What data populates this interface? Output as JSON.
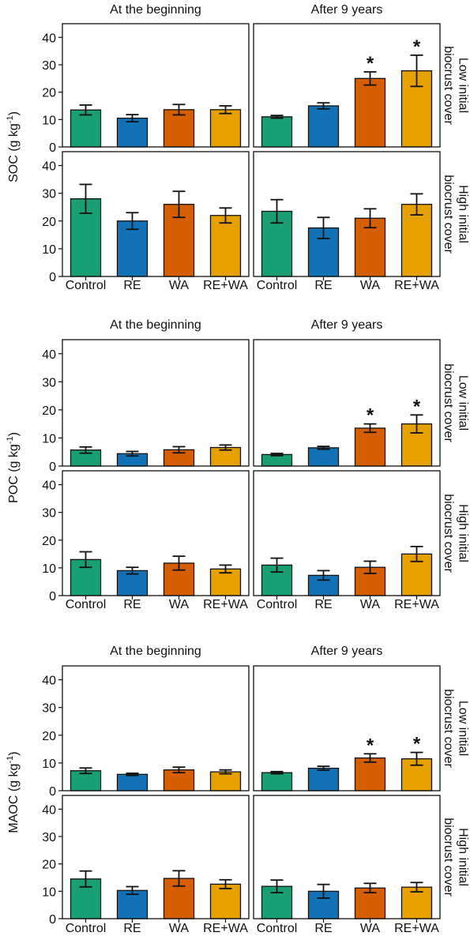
{
  "chart_data": [
    {
      "type": "bar",
      "ylabel": "SOC",
      "yunit": "(g kg",
      "yunit_exp": "-1",
      "ylim": [
        0,
        45
      ],
      "yticks": [
        0,
        10,
        20,
        30,
        40
      ],
      "categories": [
        "Control",
        "RE",
        "WA",
        "RE+WA"
      ],
      "colors": [
        "#1a9e73",
        "#1272b5",
        "#d55e00",
        "#e6a000"
      ],
      "columns": [
        "At the beginning",
        "After 9 years"
      ],
      "rows": [
        "Low initial biocrust cover",
        "High initial biocrust cover"
      ],
      "panels": [
        {
          "row": 0,
          "col": 0,
          "values": [
            13.5,
            10.5,
            13.6,
            13.6
          ],
          "errors": [
            1.8,
            1.3,
            1.9,
            1.4
          ],
          "stars": [
            "",
            "",
            "",
            ""
          ]
        },
        {
          "row": 0,
          "col": 1,
          "values": [
            11.0,
            15.0,
            25.0,
            27.8
          ],
          "errors": [
            0.5,
            1.1,
            2.4,
            5.7
          ],
          "stars": [
            "",
            "",
            "*",
            "*"
          ]
        },
        {
          "row": 1,
          "col": 0,
          "values": [
            28.0,
            20.0,
            26.0,
            22.0
          ],
          "errors": [
            5.2,
            3.0,
            4.7,
            2.7
          ],
          "stars": [
            "",
            "",
            "",
            ""
          ]
        },
        {
          "row": 1,
          "col": 1,
          "values": [
            23.5,
            17.5,
            21.0,
            26.0
          ],
          "errors": [
            4.2,
            3.8,
            3.4,
            3.8
          ],
          "stars": [
            "",
            "",
            "",
            ""
          ]
        }
      ]
    },
    {
      "type": "bar",
      "ylabel": "POC",
      "yunit": "(g kg",
      "yunit_exp": "-1",
      "ylim": [
        0,
        45
      ],
      "yticks": [
        0,
        10,
        20,
        30,
        40
      ],
      "categories": [
        "Control",
        "RE",
        "WA",
        "RE+WA"
      ],
      "colors": [
        "#1a9e73",
        "#1272b5",
        "#d55e00",
        "#e6a000"
      ],
      "columns": [
        "At the beginning",
        "After 9 years"
      ],
      "rows": [
        "Low initial biocrust cover",
        "High initial biocrust cover"
      ],
      "panels": [
        {
          "row": 0,
          "col": 0,
          "values": [
            5.7,
            4.4,
            5.8,
            6.6
          ],
          "errors": [
            1.1,
            0.8,
            1.1,
            0.9
          ],
          "stars": [
            "",
            "",
            "",
            ""
          ]
        },
        {
          "row": 0,
          "col": 1,
          "values": [
            4.1,
            6.5,
            13.5,
            15.0
          ],
          "errors": [
            0.4,
            0.5,
            1.5,
            3.2
          ],
          "stars": [
            "",
            "",
            "*",
            "*"
          ]
        },
        {
          "row": 1,
          "col": 0,
          "values": [
            13.0,
            9.0,
            11.7,
            9.6
          ],
          "errors": [
            2.8,
            1.2,
            2.5,
            1.4
          ],
          "stars": [
            "",
            "",
            "",
            ""
          ]
        },
        {
          "row": 1,
          "col": 1,
          "values": [
            11.0,
            7.3,
            10.2,
            15.0
          ],
          "errors": [
            2.5,
            1.7,
            2.2,
            2.7
          ],
          "stars": [
            "",
            "",
            "",
            ""
          ]
        }
      ]
    },
    {
      "type": "bar",
      "ylabel": "MAOC",
      "yunit": "(g kg",
      "yunit_exp": "-1",
      "ylim": [
        0,
        45
      ],
      "yticks": [
        0,
        10,
        20,
        30,
        40
      ],
      "categories": [
        "Control",
        "RE",
        "WA",
        "RE+WA"
      ],
      "colors": [
        "#1a9e73",
        "#1272b5",
        "#d55e00",
        "#e6a000"
      ],
      "columns": [
        "At the beginning",
        "After 9 years"
      ],
      "rows": [
        "Low initial biocrust cover",
        "High initial biocrust cover"
      ],
      "panels": [
        {
          "row": 0,
          "col": 0,
          "values": [
            7.2,
            5.9,
            7.5,
            6.8
          ],
          "errors": [
            1.0,
            0.4,
            1.0,
            0.7
          ],
          "stars": [
            "",
            "",
            "",
            ""
          ]
        },
        {
          "row": 0,
          "col": 1,
          "values": [
            6.5,
            8.1,
            11.8,
            11.5
          ],
          "errors": [
            0.4,
            0.7,
            1.5,
            2.3
          ],
          "stars": [
            "",
            "",
            "*",
            "*"
          ]
        },
        {
          "row": 1,
          "col": 0,
          "values": [
            14.5,
            10.3,
            14.7,
            12.6
          ],
          "errors": [
            2.9,
            1.4,
            2.8,
            1.6
          ],
          "stars": [
            "",
            "",
            "",
            ""
          ]
        },
        {
          "row": 1,
          "col": 1,
          "values": [
            11.8,
            10.0,
            11.2,
            11.5
          ],
          "errors": [
            2.3,
            2.5,
            1.7,
            1.7
          ],
          "stars": [
            "",
            "",
            "",
            ""
          ]
        }
      ]
    }
  ]
}
